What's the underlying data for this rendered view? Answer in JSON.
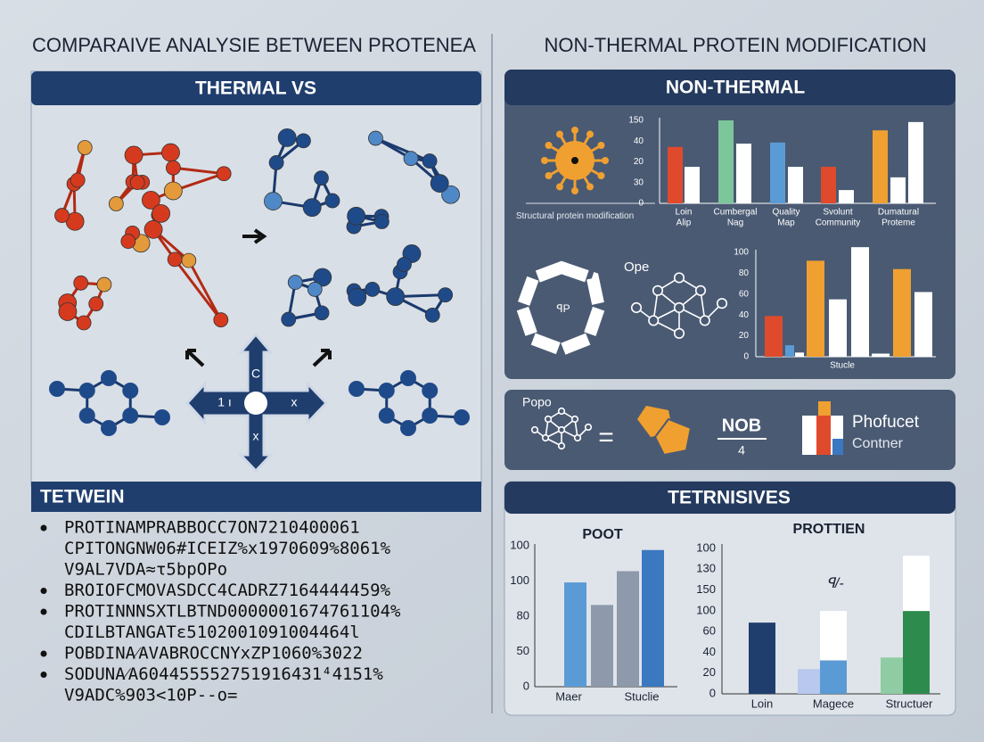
{
  "left": {
    "title": "COMPARAIVE ANALYSIE BETWEEN PROTENEA",
    "panel_title": "THERMAL VS",
    "cross_labels": [
      "C",
      "1 ı",
      "x",
      "x"
    ],
    "list_title": "TETWEIN",
    "list": [
      [
        "PROTINAMPRABBOCC7ON7210400061",
        "CPITONGNW06#ICEIZ%x1970609%8061%",
        "V9AL7VDA≈τ5bpOPo"
      ],
      [
        "BROIOFCMOVASDCC4CADRZ7164444459%"
      ],
      [
        "PROTINNNSXTLBTND0000001674761104%",
        "CDILBTANGATε5102001091004464l"
      ],
      [
        "POBDINA⁄AVABROCCNYxZP1060%3022"
      ],
      [
        "SODUNA⁄A604455552751916431⁴4151%",
        "V9ADC%903<10P--o="
      ]
    ]
  },
  "right": {
    "title": "NON-THERMAL PROTEIN MODIFICATION",
    "panel1": {
      "title": "NON-THERMAL",
      "icon_label": "Structural protein modification",
      "ring_label": "ꟼP",
      "network_label": "Ope",
      "chart1": {
        "ylim": [
          0,
          150
        ],
        "tick_labels": [
          "150",
          "40",
          "20",
          "30",
          "0"
        ],
        "categories": [
          [
            "Loin",
            "Alip"
          ],
          [
            "Cumbergal",
            "Nag"
          ],
          [
            "Quality",
            "Map"
          ],
          [
            "Svolunt",
            "Community"
          ],
          [
            "Dumatural",
            "Proteme"
          ]
        ],
        "bars": [
          {
            "value": 102,
            "color": "#e04a2c"
          },
          {
            "value": 66,
            "color": "#ffffff"
          },
          {
            "value": 150,
            "color": "#7cc79a"
          },
          {
            "value": 108,
            "color": "#ffffff"
          },
          {
            "value": 110,
            "color": "#5b9bd5"
          },
          {
            "value": 66,
            "color": "#ffffff"
          },
          {
            "value": 66,
            "color": "#e04a2c"
          },
          {
            "value": 24,
            "color": "#ffffff"
          },
          {
            "value": 132,
            "color": "#f0a030"
          },
          {
            "value": 47,
            "color": "#ffffff"
          },
          {
            "value": 147,
            "color": "#ffffff"
          }
        ]
      },
      "chart2": {
        "ylim": [
          0,
          100
        ],
        "tick_labels": [
          "100",
          "80",
          "60",
          "40",
          "20",
          "0"
        ],
        "x_label": "Stucle",
        "bars": [
          {
            "value": 39,
            "color": "#e04a2c"
          },
          {
            "value": 11,
            "color": "#5b9bd5"
          },
          {
            "value": 4,
            "color": "#ffffff"
          },
          {
            "value": 92,
            "color": "#f0a030"
          },
          {
            "value": 55,
            "color": "#ffffff"
          },
          {
            "value": 105,
            "color": "#ffffff"
          },
          {
            "value": 3,
            "color": "#ffffff"
          },
          {
            "value": 84,
            "color": "#f0a030"
          },
          {
            "value": 62,
            "color": "#ffffff"
          }
        ]
      }
    },
    "panel2": {
      "network_label": "Popo",
      "equals": "=",
      "fraction_top": "NOB",
      "fraction_bottom": "4",
      "product_title": "Phofucet",
      "product_subtitle": "Contner"
    },
    "panel3": {
      "title": "TETRNISIVES",
      "chart1": {
        "title": "POOT",
        "ylim": [
          0,
          100
        ],
        "tick_labels": [
          "100",
          "100",
          "80",
          "50",
          "0"
        ],
        "categories": [
          "Maer",
          "Stuclie"
        ],
        "bars": [
          {
            "value": 74,
            "color": "#5b9bd5"
          },
          {
            "value": 58,
            "color": "#8e9aab"
          },
          {
            "value": 82,
            "color": "#8e9aab"
          },
          {
            "value": 97,
            "color": "#3a78c0"
          }
        ]
      },
      "chart2": {
        "title": "PROTTIEN",
        "annotation": "ꟼ/-",
        "ylim": [
          0,
          100
        ],
        "tick_labels": [
          "100",
          "130",
          "150",
          "100",
          "60",
          "40",
          "20",
          "0"
        ],
        "categories": [
          "Loin",
          "Magece",
          "Structuer"
        ],
        "bars": [
          {
            "value": 49,
            "color": "#1f3e6e"
          },
          {
            "value": 17,
            "color": "#b8c8ee"
          },
          {
            "value": 23,
            "color": "#5b9bd5"
          },
          {
            "value": 34,
            "color": "#ffffff"
          },
          {
            "value": 25,
            "color": "#8fcca4"
          },
          {
            "value": 57,
            "color": "#2e8b4e"
          },
          {
            "value": 38,
            "color": "#ffffff"
          }
        ]
      }
    }
  }
}
